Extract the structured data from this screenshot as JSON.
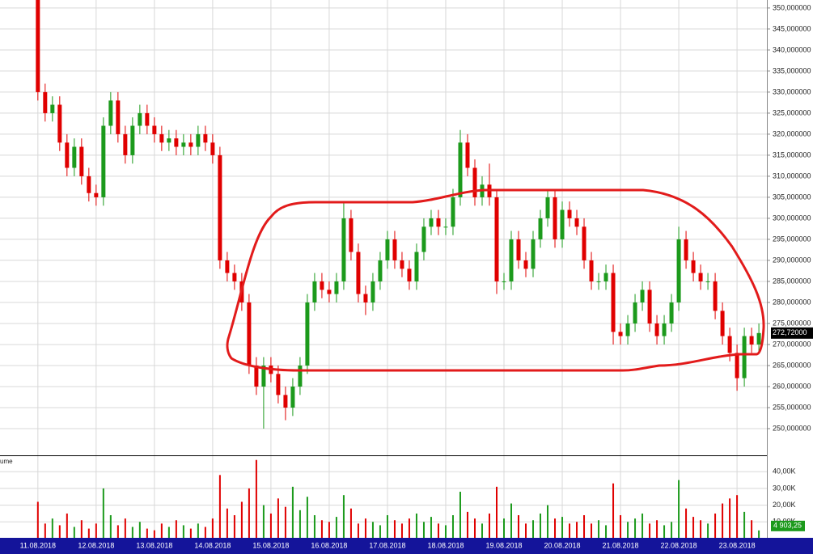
{
  "chart_data": {
    "type": "candlestick",
    "volume_title": "ume",
    "up_color": "#1c9a1c",
    "down_color": "#e00000",
    "grid": true,
    "xlim": [
      -5.2,
      100.1
    ],
    "xticks": [
      {
        "value": 0,
        "label": "11.08.2018"
      },
      {
        "value": 8,
        "label": "12.08.2018"
      },
      {
        "value": 16,
        "label": "13.08.2018"
      },
      {
        "value": 24,
        "label": "14.08.2018"
      },
      {
        "value": 32,
        "label": "15.08.2018"
      },
      {
        "value": 40,
        "label": "16.08.2018"
      },
      {
        "value": 48,
        "label": "17.08.2018"
      },
      {
        "value": 56,
        "label": "18.08.2018"
      },
      {
        "value": 64,
        "label": "19.08.2018"
      },
      {
        "value": 72,
        "label": "20.08.2018"
      },
      {
        "value": 80,
        "label": "21.08.2018"
      },
      {
        "value": 88,
        "label": "22.08.2018"
      },
      {
        "value": 96,
        "label": "23.08.2018"
      }
    ],
    "ylim": [
      243.65,
      351.9
    ],
    "yticks": [
      {
        "value": 250,
        "label": "250,000000"
      },
      {
        "value": 255,
        "label": "255,000000"
      },
      {
        "value": 260,
        "label": "260,000000"
      },
      {
        "value": 265,
        "label": "265,000000"
      },
      {
        "value": 270,
        "label": "270,000000"
      },
      {
        "value": 275,
        "label": "275,000000"
      },
      {
        "value": 280,
        "label": "280,000000"
      },
      {
        "value": 285,
        "label": "285,000000"
      },
      {
        "value": 290,
        "label": "290,000000"
      },
      {
        "value": 295,
        "label": "295,000000"
      },
      {
        "value": 300,
        "label": "300,000000"
      },
      {
        "value": 305,
        "label": "305,000000"
      },
      {
        "value": 310,
        "label": "310,000000"
      },
      {
        "value": 315,
        "label": "315,000000"
      },
      {
        "value": 320,
        "label": "320,000000"
      },
      {
        "value": 325,
        "label": "325,000000"
      },
      {
        "value": 330,
        "label": "330,000000"
      },
      {
        "value": 335,
        "label": "335,000000"
      },
      {
        "value": 340,
        "label": "340,000000"
      },
      {
        "value": 345,
        "label": "345,000000"
      },
      {
        "value": 350,
        "label": "350,000000"
      }
    ],
    "volume_ylim": [
      0,
      48800
    ],
    "volume_ticks": [
      {
        "value": 10000,
        "label": "10,00K"
      },
      {
        "value": 20000,
        "label": "20,00K"
      },
      {
        "value": 30000,
        "label": "30,00K"
      },
      {
        "value": 40000,
        "label": "40,00K"
      }
    ],
    "open": [
      352,
      330,
      325,
      327,
      318,
      312,
      317,
      310,
      306,
      305,
      322,
      328,
      320,
      315,
      322,
      325,
      322,
      320,
      318,
      319,
      317,
      318,
      317,
      320,
      318,
      315,
      290,
      287,
      285,
      280,
      265,
      260,
      265,
      263,
      258,
      255,
      260,
      265,
      280,
      285,
      283,
      282,
      285,
      300,
      292,
      282,
      280,
      285,
      290,
      295,
      290,
      288,
      285,
      292,
      298,
      300,
      298,
      298,
      305,
      318,
      312,
      305,
      308,
      305,
      285,
      285,
      295,
      290,
      288,
      295,
      300,
      305,
      295,
      302,
      300,
      298,
      290,
      285,
      285,
      287,
      273,
      272,
      275,
      280,
      283,
      275,
      272,
      275,
      280,
      295,
      290,
      287,
      285,
      285,
      278,
      272,
      268,
      262,
      272,
      270
    ],
    "high": [
      352,
      332,
      329,
      329,
      320,
      319,
      319,
      312,
      308,
      324,
      330,
      330,
      322,
      324,
      327,
      327,
      324,
      322,
      321,
      321,
      320,
      320,
      322,
      322,
      320,
      317,
      292,
      289,
      287,
      282,
      267,
      267,
      267,
      265,
      260,
      262,
      267,
      282,
      287,
      287,
      285,
      287,
      304,
      302,
      294,
      284,
      287,
      292,
      297,
      297,
      292,
      290,
      294,
      300,
      302,
      302,
      300,
      307,
      321,
      320,
      314,
      310,
      313,
      307,
      287,
      297,
      297,
      292,
      297,
      302,
      307,
      307,
      304,
      304,
      302,
      300,
      292,
      287,
      289,
      289,
      275,
      277,
      282,
      285,
      285,
      277,
      277,
      282,
      298,
      297,
      292,
      289,
      287,
      287,
      280,
      274,
      270,
      274,
      274,
      275
    ],
    "low": [
      328,
      323,
      323,
      316,
      310,
      310,
      308,
      304,
      303,
      303,
      320,
      318,
      313,
      313,
      320,
      320,
      318,
      316,
      316,
      315,
      315,
      315,
      315,
      316,
      313,
      288,
      285,
      283,
      278,
      263,
      258,
      250,
      261,
      256,
      252,
      253,
      258,
      263,
      278,
      281,
      280,
      280,
      283,
      290,
      280,
      277,
      278,
      283,
      288,
      288,
      286,
      283,
      283,
      290,
      296,
      296,
      296,
      296,
      303,
      310,
      303,
      303,
      303,
      282,
      283,
      283,
      288,
      286,
      286,
      293,
      298,
      293,
      293,
      298,
      296,
      288,
      283,
      283,
      283,
      270,
      270,
      270,
      273,
      278,
      273,
      270,
      270,
      273,
      278,
      288,
      285,
      283,
      283,
      276,
      270,
      266,
      259,
      260,
      268,
      268
    ],
    "close": [
      330,
      325,
      327,
      318,
      312,
      317,
      310,
      306,
      305,
      322,
      328,
      320,
      315,
      322,
      325,
      322,
      320,
      318,
      319,
      317,
      318,
      317,
      320,
      318,
      315,
      290,
      287,
      285,
      280,
      265,
      260,
      265,
      263,
      258,
      255,
      260,
      265,
      280,
      285,
      283,
      282,
      285,
      300,
      292,
      282,
      280,
      285,
      290,
      295,
      290,
      288,
      285,
      292,
      298,
      300,
      298,
      298,
      305,
      318,
      312,
      305,
      308,
      305,
      285,
      285,
      295,
      290,
      288,
      295,
      300,
      305,
      295,
      302,
      300,
      298,
      290,
      285,
      285,
      287,
      273,
      272,
      275,
      280,
      283,
      275,
      272,
      275,
      280,
      295,
      290,
      287,
      285,
      285,
      278,
      272,
      268,
      262,
      272,
      270,
      272.72
    ],
    "close_label": "272,72000",
    "volume": [
      22000,
      9000,
      12000,
      8000,
      15000,
      7000,
      11000,
      6000,
      9000,
      30000,
      14000,
      8000,
      12000,
      7000,
      10000,
      6000,
      5000,
      9000,
      7000,
      11000,
      8000,
      6000,
      9000,
      7000,
      12000,
      38000,
      18000,
      14000,
      22000,
      30000,
      47000,
      20000,
      15000,
      24000,
      19000,
      31000,
      17000,
      25000,
      14000,
      11000,
      10000,
      13000,
      26000,
      18000,
      9000,
      12000,
      10000,
      8000,
      14000,
      11000,
      9000,
      12000,
      15000,
      10000,
      13000,
      9000,
      8000,
      14000,
      28000,
      16000,
      12000,
      9000,
      15000,
      31000,
      12000,
      21000,
      14000,
      9000,
      11000,
      15000,
      20000,
      12000,
      13000,
      9000,
      10000,
      14000,
      9000,
      11000,
      8000,
      33000,
      14000,
      10000,
      12000,
      15000,
      9000,
      11000,
      8000,
      10000,
      35000,
      18000,
      13000,
      11000,
      9000,
      15000,
      21000,
      24000,
      26000,
      16000,
      11000,
      4903.25
    ],
    "volume_last_label": "4 903,25"
  }
}
